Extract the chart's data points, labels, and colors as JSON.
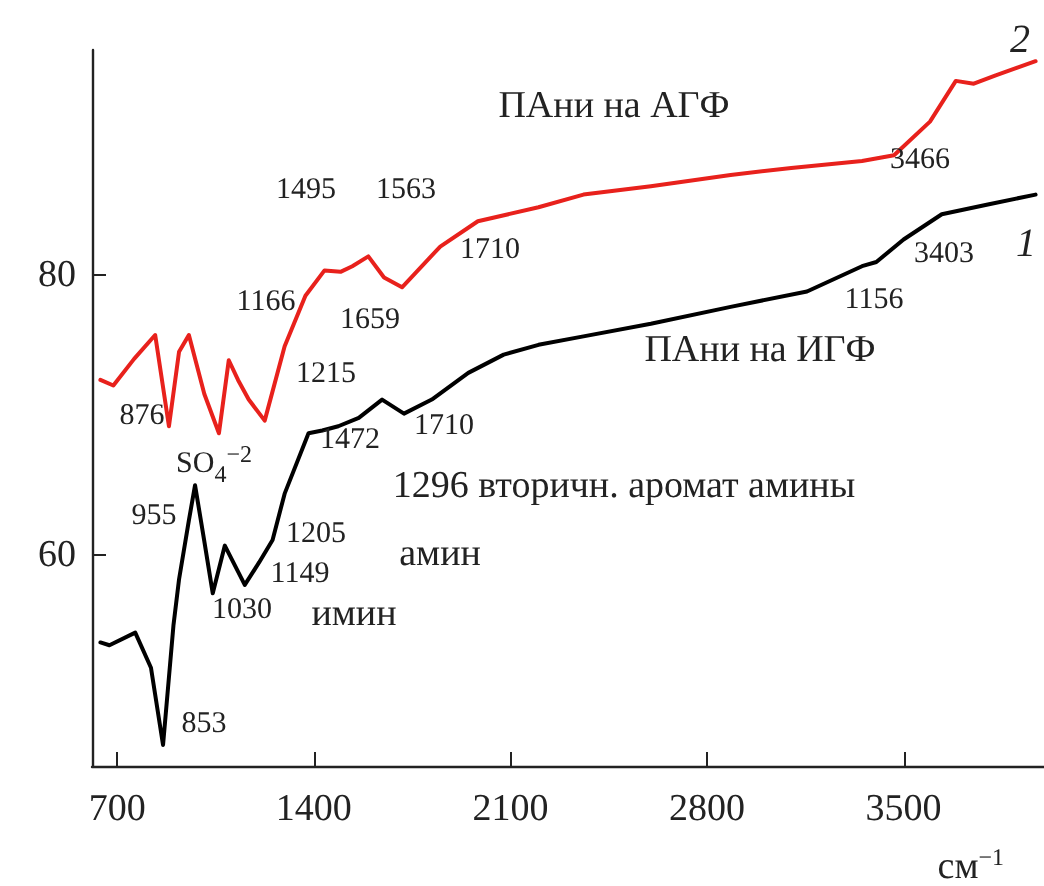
{
  "chart_data": {
    "type": "line",
    "xlabel": "см$^{−1}$",
    "xlim": [
      610,
      4000
    ],
    "xticks": [
      700,
      1400,
      2100,
      2800,
      3500
    ],
    "ylim": [
      45,
      96
    ],
    "yticks": [
      60,
      80
    ],
    "grid": false,
    "marker": "none",
    "line_style": "solid",
    "series": [
      {
        "color": "#e8211c",
        "x": [
          640,
          686,
          760,
          835,
          884,
          920,
          955,
          1010,
          1062,
          1097,
          1130,
          1168,
          1225,
          1296,
          1370,
          1438,
          1495,
          1537,
          1594,
          1650,
          1714,
          1850,
          1984,
          2200,
          2360,
          2600,
          2884,
          3100,
          3352,
          3466,
          3594,
          3686,
          3750,
          3828,
          3970
        ],
        "values": [
          72.5,
          72.1,
          74.0,
          75.7,
          69.2,
          74.5,
          75.7,
          71.5,
          68.7,
          73.9,
          72.5,
          71.1,
          69.6,
          74.9,
          78.5,
          80.3,
          80.2,
          80.6,
          81.3,
          79.8,
          79.1,
          82.0,
          83.8,
          84.8,
          85.7,
          86.3,
          87.1,
          87.6,
          88.1,
          88.5,
          90.9,
          93.8,
          93.6,
          94.2,
          95.2
        ]
      },
      {
        "color": "#000000",
        "x": [
          640,
          672,
          764,
          820,
          863,
          900,
          920,
          955,
          977,
          1010,
          1040,
          1083,
          1154,
          1205,
          1253,
          1296,
          1381,
          1430,
          1487,
          1560,
          1643,
          1721,
          1820,
          1950,
          2076,
          2200,
          2360,
          2600,
          2884,
          3156,
          3352,
          3403,
          3500,
          3636,
          3800,
          3970
        ],
        "values": [
          53.8,
          53.6,
          54.5,
          52.0,
          46.5,
          55.0,
          58.3,
          62.5,
          65.0,
          61.0,
          57.3,
          60.7,
          57.9,
          59.5,
          61.1,
          64.4,
          68.7,
          68.9,
          69.2,
          69.8,
          71.1,
          70.1,
          71.1,
          73.0,
          74.3,
          75.0,
          75.6,
          76.5,
          77.7,
          78.8,
          80.6,
          80.9,
          82.5,
          84.3,
          85.0,
          85.7
        ]
      }
    ],
    "annotations": [
      "ПАни на АГФ",
      "ПАни на ИГФ",
      "2",
      "1",
      "3466",
      "3403",
      "1156",
      "1495",
      "1563",
      "1710",
      "1659",
      "1166",
      "1215",
      "876",
      "SO$_{4}$$^{−2}$",
      "1472",
      "1710",
      "1296 вторичн. аромат амины",
      "955",
      "1205",
      "амин",
      "1149",
      "1030",
      "имин",
      "853"
    ]
  }
}
